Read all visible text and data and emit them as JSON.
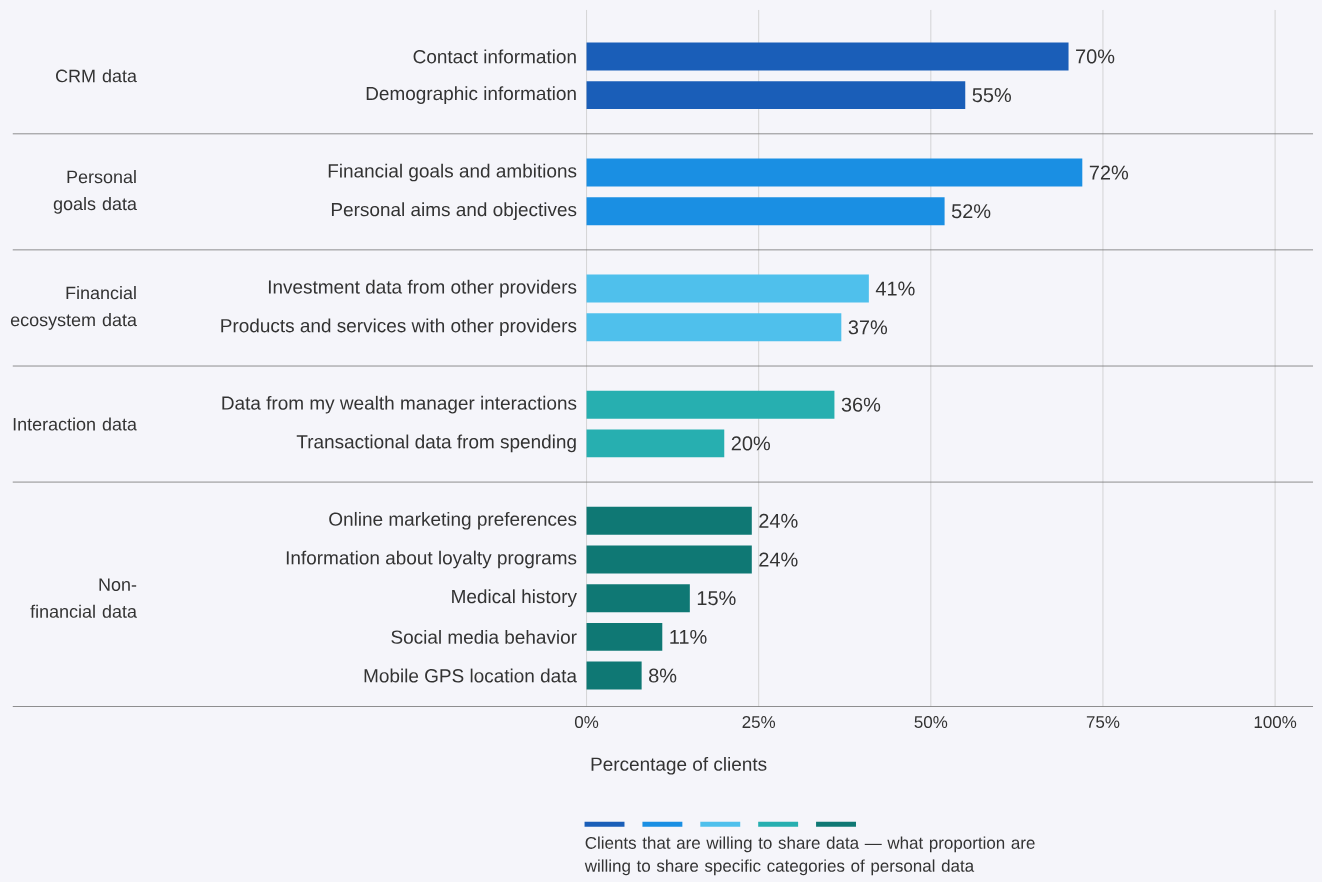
{
  "chart_data": {
    "type": "bar",
    "orientation": "horizontal",
    "categories": [
      "Contact information",
      "Demographic information",
      "Financial goals and ambitions",
      "Personal aims and objectives",
      "Investment data from other providers",
      "Products and services with other providers",
      "Data from my wealth manager interactions",
      "Transactional data from spending",
      "Online marketing preferences",
      "Information about loyalty programs",
      "Medical history",
      "Social media behavior",
      "Mobile GPS location data"
    ],
    "series": [
      {
        "color": "#1a5eb8",
        "values": [
          70,
          55,
          null,
          null,
          null,
          null,
          null,
          null,
          null,
          null,
          null,
          null,
          null
        ],
        "value_labels": [
          "70%",
          "55%",
          null,
          null,
          null,
          null,
          null,
          null,
          null,
          null,
          null,
          null,
          null
        ]
      },
      {
        "color": "#1a8fe3",
        "values": [
          null,
          null,
          72,
          52,
          null,
          null,
          null,
          null,
          null,
          null,
          null,
          null,
          null
        ],
        "value_labels": [
          null,
          null,
          "72%",
          "52%",
          null,
          null,
          null,
          null,
          null,
          null,
          null,
          null,
          null
        ]
      },
      {
        "color": "#4fc0ec",
        "values": [
          null,
          null,
          null,
          null,
          41,
          37,
          null,
          null,
          null,
          null,
          null,
          null,
          null
        ],
        "value_labels": [
          null,
          null,
          null,
          null,
          "41%",
          "37%",
          null,
          null,
          null,
          null,
          null,
          null,
          null
        ]
      },
      {
        "color": "#27afb0",
        "values": [
          null,
          null,
          null,
          null,
          null,
          null,
          36,
          20,
          null,
          null,
          null,
          null,
          null
        ],
        "value_labels": [
          null,
          null,
          null,
          null,
          null,
          null,
          "36%",
          "20%",
          null,
          null,
          null,
          null,
          null
        ]
      },
      {
        "color": "#0f7874",
        "values": [
          null,
          null,
          null,
          null,
          null,
          null,
          null,
          null,
          24,
          24,
          15,
          11,
          8
        ],
        "value_labels": [
          null,
          null,
          null,
          null,
          null,
          null,
          null,
          null,
          "24%",
          "24%",
          "15%",
          "11%",
          "8%"
        ]
      }
    ],
    "annotations": [
      "CRM data",
      "Personal goals data",
      "Financial ecosystem data",
      "Interaction data",
      "Non-financial data"
    ],
    "xlabel": "Percentage of clients",
    "xlim": [
      0,
      100
    ],
    "xticks": [
      {
        "value": 0,
        "label": "0%"
      },
      {
        "value": 25,
        "label": "25%"
      },
      {
        "value": 50,
        "label": "50%"
      },
      {
        "value": 75,
        "label": "75%"
      },
      {
        "value": 100,
        "label": "100%"
      }
    ],
    "grid": "x",
    "legend_title": "Clients that are willing to share data — what proportion are willing to share specific categories of personal data"
  }
}
